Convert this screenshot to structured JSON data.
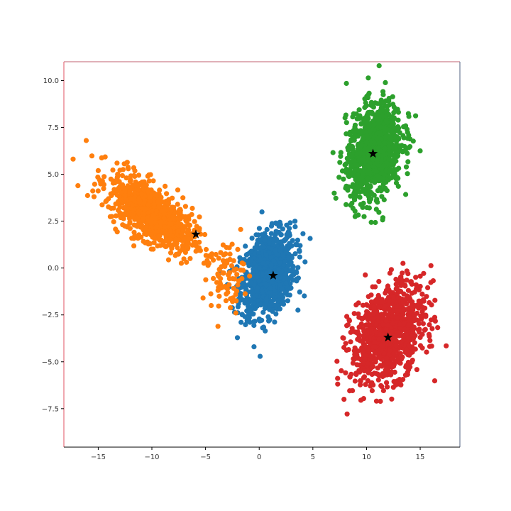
{
  "chart_data": {
    "type": "scatter",
    "title": "",
    "xlabel": "",
    "ylabel": "",
    "xlim": [
      -18.2,
      18.7
    ],
    "ylim": [
      -9.55,
      11.0
    ],
    "grid": false,
    "legend": "none",
    "x_ticks": [
      -15,
      -10,
      -5,
      0,
      5,
      10,
      15
    ],
    "x_tick_labels": [
      "−15",
      "−10",
      "−5",
      "0",
      "5",
      "10",
      "15"
    ],
    "y_ticks": [
      10.0,
      7.5,
      5.0,
      2.5,
      0.0,
      -2.5,
      -5.0,
      -7.5
    ],
    "y_tick_labels": [
      "10.0",
      "7.5",
      "5.0",
      "2.5",
      "0.0",
      "−2.5",
      "−5.0",
      "−7.5"
    ],
    "series": [
      {
        "color": "#1f77b4",
        "components": [
          {
            "count": 1000,
            "center": [
              0.8,
              -0.3
            ],
            "std": [
              1.25,
              1.1
            ],
            "correlation": 0.3
          }
        ]
      },
      {
        "color": "#ff7f0e",
        "components": [
          {
            "count": 950,
            "center": [
              -10.0,
              2.9
            ],
            "std_along": 2.1,
            "std_across": 0.7,
            "slope": -0.38
          },
          {
            "count": 80,
            "center": [
              -3.0,
              -0.4
            ],
            "std": [
              0.8,
              0.9
            ],
            "correlation": 0
          }
        ]
      },
      {
        "color": "#2ca02c",
        "components": [
          {
            "count": 1000,
            "center": [
              10.7,
              6.2
            ],
            "std": [
              1.3,
              1.3
            ],
            "correlation": 0.3
          }
        ]
      },
      {
        "color": "#d62728",
        "components": [
          {
            "count": 1000,
            "center": [
              12.0,
              -3.5
            ],
            "std": [
              1.7,
              1.3
            ],
            "correlation": 0.35
          }
        ]
      }
    ],
    "centers": {
      "marker": "star",
      "color": "#000000",
      "points": [
        [
          1.3,
          -0.4
        ],
        [
          -5.9,
          1.8
        ],
        [
          10.6,
          6.1
        ],
        [
          12.0,
          -3.7
        ]
      ]
    }
  }
}
